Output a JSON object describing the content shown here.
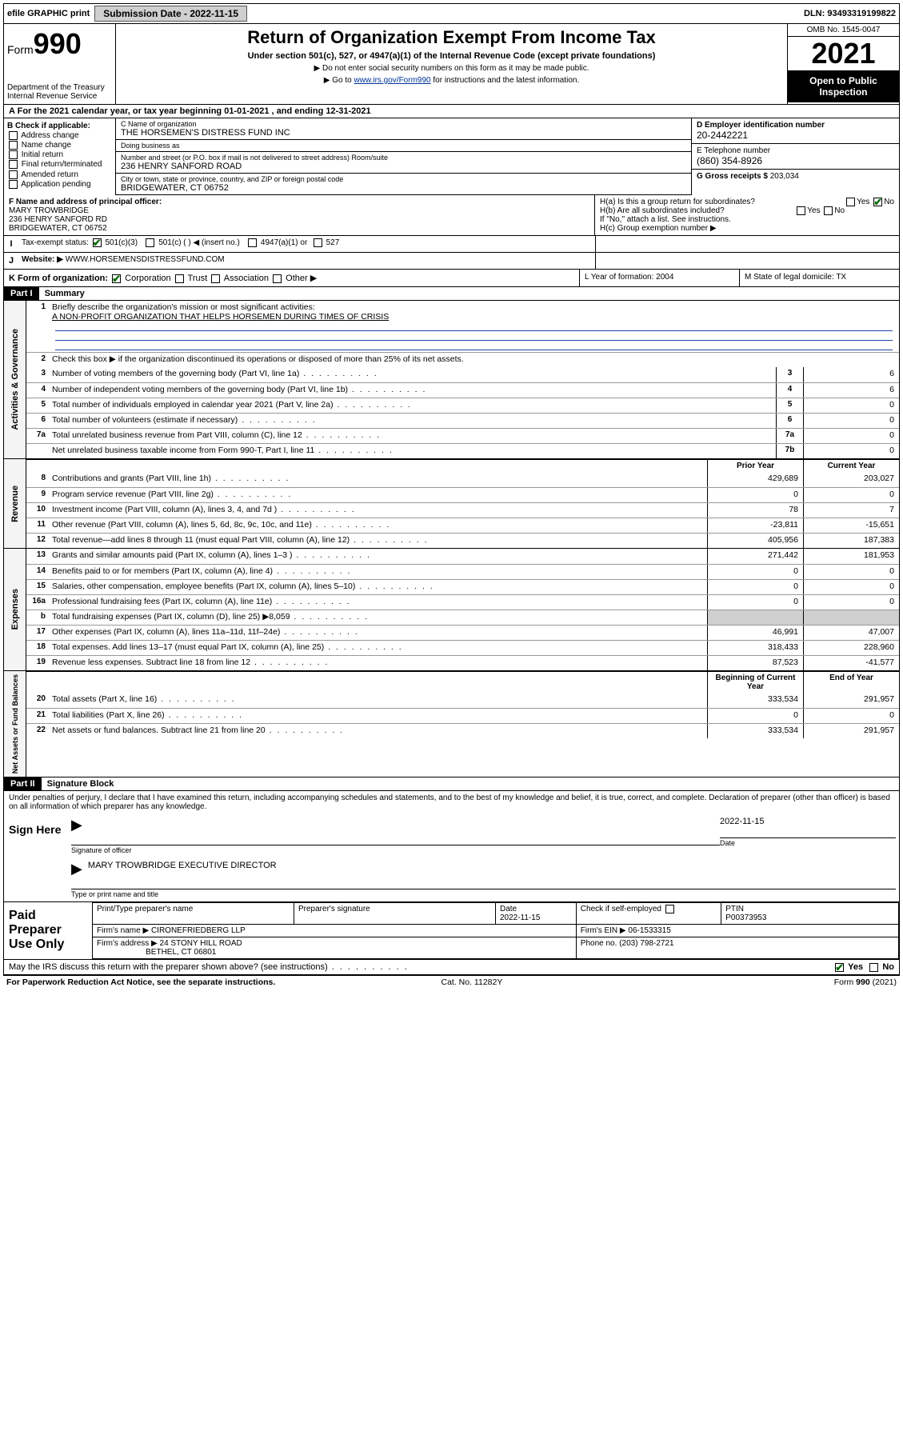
{
  "topbar": {
    "efile": "efile GRAPHIC print",
    "submission_label": "Submission Date - 2022-11-15",
    "dln": "DLN: 93493319199822"
  },
  "header": {
    "form_word": "Form",
    "form_num": "990",
    "dept": "Department of the Treasury",
    "irs": "Internal Revenue Service",
    "title": "Return of Organization Exempt From Income Tax",
    "sub": "Under section 501(c), 527, or 4947(a)(1) of the Internal Revenue Code (except private foundations)",
    "note1": "▶ Do not enter social security numbers on this form as it may be made public.",
    "note2_pre": "▶ Go to ",
    "note2_link": "www.irs.gov/Form990",
    "note2_post": " for instructions and the latest information.",
    "omb": "OMB No. 1545-0047",
    "year": "2021",
    "open": "Open to Public Inspection"
  },
  "rowA": "For the 2021 calendar year, or tax year beginning 01-01-2021   , and ending 12-31-2021",
  "boxB": {
    "label": "B Check if applicable:",
    "items": [
      "Address change",
      "Name change",
      "Initial return",
      "Final return/terminated",
      "Amended return",
      "Application pending"
    ]
  },
  "boxC": {
    "name_lbl": "C Name of organization",
    "name": "THE HORSEMEN'S DISTRESS FUND INC",
    "dba_lbl": "Doing business as",
    "dba": "",
    "addr_lbl": "Number and street (or P.O. box if mail is not delivered to street address)        Room/suite",
    "addr": "236 HENRY SANFORD ROAD",
    "city_lbl": "City or town, state or province, country, and ZIP or foreign postal code",
    "city": "BRIDGEWATER, CT  06752"
  },
  "boxD": {
    "lbl": "D Employer identification number",
    "val": "20-2442221"
  },
  "boxE": {
    "lbl": "E Telephone number",
    "val": "(860) 354-8926"
  },
  "boxG": {
    "lbl": "G Gross receipts $",
    "val": "203,034"
  },
  "boxF": {
    "lbl": "F Name and address of principal officer:",
    "name": "MARY TROWBRIDGE",
    "addr": "236 HENRY SANFORD RD",
    "city": "BRIDGEWATER, CT  06752"
  },
  "boxH": {
    "ha": "H(a)  Is this a group return for subordinates?",
    "hb": "H(b)  Are all subordinates included?",
    "hb_note": "If \"No,\" attach a list. See instructions.",
    "hc": "H(c)  Group exemption number ▶",
    "yes": "Yes",
    "no": "No"
  },
  "rowI": {
    "lbl": "Tax-exempt status:",
    "opts": [
      "501(c)(3)",
      "501(c) (  ) ◀ (insert no.)",
      "4947(a)(1) or",
      "527"
    ]
  },
  "rowJ": {
    "lbl": "Website: ▶",
    "val": "WWW.HORSEMENSDISTRESSFUND.COM"
  },
  "rowK": {
    "lbl": "K Form of organization:",
    "opts": [
      "Corporation",
      "Trust",
      "Association",
      "Other ▶"
    ],
    "L": "L Year of formation: 2004",
    "M": "M State of legal domicile: TX"
  },
  "partI": {
    "hdr": "Part I",
    "title": "Summary"
  },
  "summary": {
    "q1": "Briefly describe the organization's mission or most significant activities:",
    "mission": "A NON-PROFIT ORGANIZATION THAT HELPS HORSEMEN DURING TIMES OF CRISIS",
    "q2": "Check this box ▶       if the organization discontinued its operations or disposed of more than 25% of its net assets.",
    "lines_gov": [
      {
        "n": "3",
        "d": "Number of voting members of the governing body (Part VI, line 1a)",
        "box": "3",
        "v": "6"
      },
      {
        "n": "4",
        "d": "Number of independent voting members of the governing body (Part VI, line 1b)",
        "box": "4",
        "v": "6"
      },
      {
        "n": "5",
        "d": "Total number of individuals employed in calendar year 2021 (Part V, line 2a)",
        "box": "5",
        "v": "0"
      },
      {
        "n": "6",
        "d": "Total number of volunteers (estimate if necessary)",
        "box": "6",
        "v": "0"
      },
      {
        "n": "7a",
        "d": "Total unrelated business revenue from Part VIII, column (C), line 12",
        "box": "7a",
        "v": "0"
      },
      {
        "n": "",
        "d": "Net unrelated business taxable income from Form 990-T, Part I, line 11",
        "box": "7b",
        "v": "0"
      }
    ],
    "col_prior": "Prior Year",
    "col_curr": "Current Year",
    "rev": [
      {
        "n": "8",
        "d": "Contributions and grants (Part VIII, line 1h)",
        "p": "429,689",
        "c": "203,027"
      },
      {
        "n": "9",
        "d": "Program service revenue (Part VIII, line 2g)",
        "p": "0",
        "c": "0"
      },
      {
        "n": "10",
        "d": "Investment income (Part VIII, column (A), lines 3, 4, and 7d )",
        "p": "78",
        "c": "7"
      },
      {
        "n": "11",
        "d": "Other revenue (Part VIII, column (A), lines 5, 6d, 8c, 9c, 10c, and 11e)",
        "p": "-23,811",
        "c": "-15,651"
      },
      {
        "n": "12",
        "d": "Total revenue—add lines 8 through 11 (must equal Part VIII, column (A), line 12)",
        "p": "405,956",
        "c": "187,383"
      }
    ],
    "exp": [
      {
        "n": "13",
        "d": "Grants and similar amounts paid (Part IX, column (A), lines 1–3 )",
        "p": "271,442",
        "c": "181,953"
      },
      {
        "n": "14",
        "d": "Benefits paid to or for members (Part IX, column (A), line 4)",
        "p": "0",
        "c": "0"
      },
      {
        "n": "15",
        "d": "Salaries, other compensation, employee benefits (Part IX, column (A), lines 5–10)",
        "p": "0",
        "c": "0"
      },
      {
        "n": "16a",
        "d": "Professional fundraising fees (Part IX, column (A), line 11e)",
        "p": "0",
        "c": "0"
      },
      {
        "n": "b",
        "d": "Total fundraising expenses (Part IX, column (D), line 25) ▶8,059",
        "p": "",
        "c": "",
        "shade": true
      },
      {
        "n": "17",
        "d": "Other expenses (Part IX, column (A), lines 11a–11d, 11f–24e)",
        "p": "46,991",
        "c": "47,007"
      },
      {
        "n": "18",
        "d": "Total expenses. Add lines 13–17 (must equal Part IX, column (A), line 25)",
        "p": "318,433",
        "c": "228,960"
      },
      {
        "n": "19",
        "d": "Revenue less expenses. Subtract line 18 from line 12",
        "p": "87,523",
        "c": "-41,577"
      }
    ],
    "col_beg": "Beginning of Current Year",
    "col_end": "End of Year",
    "net": [
      {
        "n": "20",
        "d": "Total assets (Part X, line 16)",
        "p": "333,534",
        "c": "291,957"
      },
      {
        "n": "21",
        "d": "Total liabilities (Part X, line 26)",
        "p": "0",
        "c": "0"
      },
      {
        "n": "22",
        "d": "Net assets or fund balances. Subtract line 21 from line 20",
        "p": "333,534",
        "c": "291,957"
      }
    ]
  },
  "side_labels": {
    "gov": "Activities & Governance",
    "rev": "Revenue",
    "exp": "Expenses",
    "net": "Net Assets or Fund Balances"
  },
  "partII": {
    "hdr": "Part II",
    "title": "Signature Block"
  },
  "sig": {
    "jurat": "Under penalties of perjury, I declare that I have examined this return, including accompanying schedules and statements, and to the best of my knowledge and belief, it is true, correct, and complete. Declaration of preparer (other than officer) is based on all information of which preparer has any knowledge.",
    "sign_here": "Sign Here",
    "sig_of_officer": "Signature of officer",
    "date_lbl": "Date",
    "date": "2022-11-15",
    "name_title": "MARY TROWBRIDGE  EXECUTIVE DIRECTOR",
    "type_name": "Type or print name and title"
  },
  "prep": {
    "lbl": "Paid Preparer Use Only",
    "h_name": "Print/Type preparer's name",
    "h_sig": "Preparer's signature",
    "h_date": "Date",
    "date": "2022-11-15",
    "h_check": "Check        if self-employed",
    "h_ptin": "PTIN",
    "ptin": "P00373953",
    "firm_name_lbl": "Firm's name    ▶",
    "firm_name": "CIRONEFRIEDBERG LLP",
    "firm_ein_lbl": "Firm's EIN ▶",
    "firm_ein": "06-1533315",
    "firm_addr_lbl": "Firm's address ▶",
    "firm_addr1": "24 STONY HILL ROAD",
    "firm_addr2": "BETHEL, CT  06801",
    "phone_lbl": "Phone no.",
    "phone": "(203) 798-2721"
  },
  "discuss": {
    "q": "May the IRS discuss this return with the preparer shown above? (see instructions)",
    "yes": "Yes",
    "no": "No"
  },
  "footer": {
    "left": "For Paperwork Reduction Act Notice, see the separate instructions.",
    "mid": "Cat. No. 11282Y",
    "right": "Form 990 (2021)"
  },
  "colors": {
    "link": "#003399",
    "topbar_btn_bg": "#cfcfcf",
    "shade": "#cfcfcf",
    "check_green": "#0a6e0a"
  }
}
